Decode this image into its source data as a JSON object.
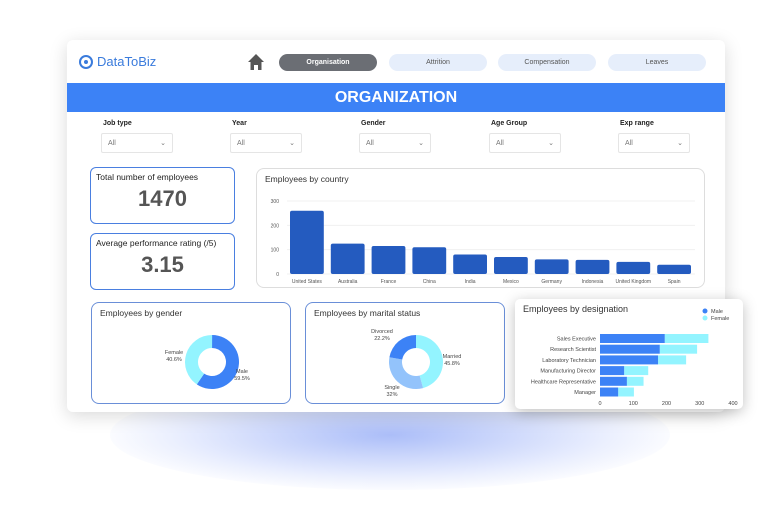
{
  "logo": "DataToBiz",
  "nav": {
    "tabs": [
      "Organisation",
      "Attrition",
      "Compensation",
      "Leaves"
    ],
    "active": "Organisation"
  },
  "banner": "ORGANIZATION",
  "filters": [
    {
      "label": "Job type",
      "value": "All"
    },
    {
      "label": "Year",
      "value": "All"
    },
    {
      "label": "Gender",
      "value": "All"
    },
    {
      "label": "Age Group",
      "value": "All"
    },
    {
      "label": "Exp range",
      "value": "All"
    }
  ],
  "kpis": [
    {
      "title": "Total number of employees",
      "value": "1470"
    },
    {
      "title": "Average performance rating (/5)",
      "value": "3.15"
    }
  ],
  "colors": {
    "brand": "#3c82f6",
    "bar": "#245bbf",
    "male": "#3c82f6",
    "female": "#93f4ff",
    "single": "#93c3fb"
  },
  "chart_data": [
    {
      "type": "bar",
      "title": "Employees by country",
      "categories": [
        "United States",
        "Australia",
        "France",
        "China",
        "India",
        "Mexico",
        "Germany",
        "Indonesia",
        "United Kingdom",
        "Spain"
      ],
      "values": [
        260,
        125,
        115,
        110,
        80,
        70,
        60,
        58,
        50,
        38
      ],
      "ylim": [
        0,
        300
      ],
      "yticks": [
        0,
        100,
        200,
        300
      ],
      "grid": true
    },
    {
      "type": "pie",
      "title": "Employees by gender",
      "slices": [
        {
          "label": "Male",
          "value": 59.5,
          "text": "59.5%"
        },
        {
          "label": "Female",
          "value": 40.6,
          "text": "40.6%"
        }
      ],
      "donut": true
    },
    {
      "type": "pie",
      "title": "Employees by marital status",
      "slices": [
        {
          "label": "Married",
          "value": 45.8,
          "text": "45.8%"
        },
        {
          "label": "Single",
          "value": 32,
          "text": "32%"
        },
        {
          "label": "Divorced",
          "value": 22.2,
          "text": "22.2%"
        }
      ],
      "donut": true
    },
    {
      "type": "bar",
      "orientation": "horizontal",
      "stacked": true,
      "title": "Employees by designation",
      "categories": [
        "Sales Executive",
        "Research Scientist",
        "Laboratory Technician",
        "Manufacturing Director",
        "Healthcare Representative",
        "Manager"
      ],
      "series": [
        {
          "name": "Male",
          "values": [
            195,
            180,
            175,
            73,
            81,
            55
          ]
        },
        {
          "name": "Female",
          "values": [
            131,
            112,
            84,
            72,
            50,
            47
          ]
        }
      ],
      "xlim": [
        0,
        400
      ],
      "xticks": [
        0,
        100,
        200,
        300,
        400
      ],
      "legend": "top-right"
    }
  ]
}
